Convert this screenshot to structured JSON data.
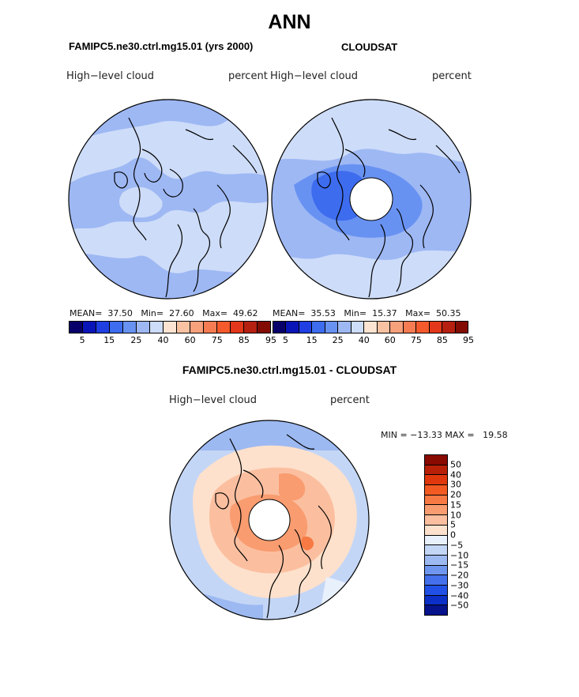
{
  "title": "ANN",
  "panel_left": {
    "case": "FAMIPC5.ne30.ctrl.mg15.01 (yrs 2000)",
    "variable": "High−level cloud",
    "units": "percent",
    "stats": "MEAN=  37.50   Min=  27.60   Max=  49.62"
  },
  "panel_right": {
    "case": "CLOUDSAT",
    "variable": "High−level cloud",
    "units": "percent",
    "stats": "MEAN=  35.53   Min=  15.37   Max=  50.35"
  },
  "abs_colorbar": {
    "colors": [
      "#08006a",
      "#0a15b8",
      "#1f3fe3",
      "#3d6cef",
      "#6892f2",
      "#9eb8f4",
      "#cddcf8",
      "#fde4d2",
      "#f9c2a2",
      "#f7a07c",
      "#f57c52",
      "#f45a2c",
      "#e2371a",
      "#b52010",
      "#820c04"
    ],
    "ticks": [
      "5",
      "15",
      "25",
      "40",
      "60",
      "75",
      "85",
      "95"
    ]
  },
  "diff": {
    "title": "FAMIPC5.ne30.ctrl.mg15.01 - CLOUDSAT",
    "variable": "High−level cloud",
    "units": "percent",
    "minmax": "MIN = −13.33 MAX =   19.58",
    "colorbar": {
      "colors": [
        "#880a00",
        "#b82008",
        "#e0380c",
        "#f35a22",
        "#f77a44",
        "#f99c70",
        "#fbbfa0",
        "#fde1cc",
        "#e8f0fb",
        "#c4d6f6",
        "#9db9f2",
        "#6f96ee",
        "#4470ec",
        "#2150e6",
        "#0c2fc8",
        "#06138c"
      ],
      "ticks": [
        "50",
        "40",
        "30",
        "20",
        "15",
        "10",
        "5",
        "0",
        "−5",
        "−10",
        "−15",
        "−20",
        "−30",
        "−40",
        "−50"
      ]
    }
  }
}
